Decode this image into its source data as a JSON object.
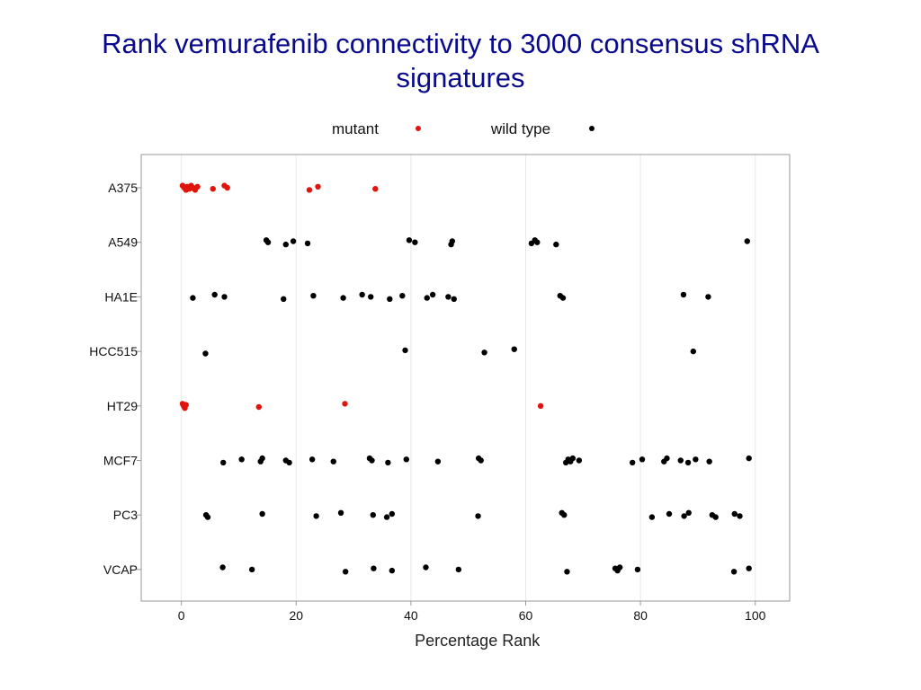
{
  "slide": {
    "title": "Rank vemurafenib connectivity to 3000 consensus shRNA signatures"
  },
  "chart_data": {
    "type": "scatter",
    "title": "",
    "xlabel": "Percentage Rank",
    "ylabel": "",
    "xlim": [
      -7,
      106
    ],
    "xticks": [
      0,
      20,
      40,
      60,
      80,
      100
    ],
    "categories": [
      "A375",
      "A549",
      "HA1E",
      "HCC515",
      "HT29",
      "MCF7",
      "PC3",
      "VCAP"
    ],
    "legend": {
      "placement": "top",
      "entries": [
        {
          "label": "mutant",
          "color": "#e0140c"
        },
        {
          "label": "wild type",
          "color": "#000000"
        }
      ]
    },
    "grid": {
      "vertical": true,
      "horizontal": false,
      "color": "#e8e8e8"
    },
    "series": [
      {
        "name": "mutant",
        "color": "#e0140c",
        "points": [
          {
            "cell_line": "A375",
            "x": 0.2
          },
          {
            "cell_line": "A375",
            "x": 0.5
          },
          {
            "cell_line": "A375",
            "x": 0.8
          },
          {
            "cell_line": "A375",
            "x": 1.0
          },
          {
            "cell_line": "A375",
            "x": 1.4
          },
          {
            "cell_line": "A375",
            "x": 1.7
          },
          {
            "cell_line": "A375",
            "x": 2.0
          },
          {
            "cell_line": "A375",
            "x": 2.4
          },
          {
            "cell_line": "A375",
            "x": 2.8
          },
          {
            "cell_line": "A375",
            "x": 5.5
          },
          {
            "cell_line": "A375",
            "x": 7.5
          },
          {
            "cell_line": "A375",
            "x": 8.0
          },
          {
            "cell_line": "A375",
            "x": 22.3
          },
          {
            "cell_line": "A375",
            "x": 23.8
          },
          {
            "cell_line": "A375",
            "x": 33.8
          },
          {
            "cell_line": "HT29",
            "x": 0.2
          },
          {
            "cell_line": "HT29",
            "x": 0.4
          },
          {
            "cell_line": "HT29",
            "x": 0.6
          },
          {
            "cell_line": "HT29",
            "x": 0.8
          },
          {
            "cell_line": "HT29",
            "x": 13.5
          },
          {
            "cell_line": "HT29",
            "x": 28.5
          },
          {
            "cell_line": "HT29",
            "x": 62.6
          }
        ]
      },
      {
        "name": "wild type",
        "color": "#000000",
        "points": [
          {
            "cell_line": "A549",
            "x": 14.8
          },
          {
            "cell_line": "A549",
            "x": 15.1
          },
          {
            "cell_line": "A549",
            "x": 18.2
          },
          {
            "cell_line": "A549",
            "x": 19.5
          },
          {
            "cell_line": "A549",
            "x": 22.0
          },
          {
            "cell_line": "A549",
            "x": 39.7
          },
          {
            "cell_line": "A549",
            "x": 40.7
          },
          {
            "cell_line": "A549",
            "x": 47.0
          },
          {
            "cell_line": "A549",
            "x": 47.2
          },
          {
            "cell_line": "A549",
            "x": 61.0
          },
          {
            "cell_line": "A549",
            "x": 61.6
          },
          {
            "cell_line": "A549",
            "x": 62.0
          },
          {
            "cell_line": "A549",
            "x": 65.3
          },
          {
            "cell_line": "A549",
            "x": 98.6
          },
          {
            "cell_line": "HA1E",
            "x": 2.0
          },
          {
            "cell_line": "HA1E",
            "x": 5.8
          },
          {
            "cell_line": "HA1E",
            "x": 7.5
          },
          {
            "cell_line": "HA1E",
            "x": 17.8
          },
          {
            "cell_line": "HA1E",
            "x": 23.0
          },
          {
            "cell_line": "HA1E",
            "x": 28.2
          },
          {
            "cell_line": "HA1E",
            "x": 31.5
          },
          {
            "cell_line": "HA1E",
            "x": 33.0
          },
          {
            "cell_line": "HA1E",
            "x": 36.3
          },
          {
            "cell_line": "HA1E",
            "x": 38.5
          },
          {
            "cell_line": "HA1E",
            "x": 42.8
          },
          {
            "cell_line": "HA1E",
            "x": 43.8
          },
          {
            "cell_line": "HA1E",
            "x": 46.5
          },
          {
            "cell_line": "HA1E",
            "x": 47.5
          },
          {
            "cell_line": "HA1E",
            "x": 66.0
          },
          {
            "cell_line": "HA1E",
            "x": 66.5
          },
          {
            "cell_line": "HA1E",
            "x": 87.5
          },
          {
            "cell_line": "HA1E",
            "x": 91.8
          },
          {
            "cell_line": "HCC515",
            "x": 4.2
          },
          {
            "cell_line": "HCC515",
            "x": 39.0
          },
          {
            "cell_line": "HCC515",
            "x": 52.8
          },
          {
            "cell_line": "HCC515",
            "x": 58.0
          },
          {
            "cell_line": "HCC515",
            "x": 89.2
          },
          {
            "cell_line": "MCF7",
            "x": 7.3
          },
          {
            "cell_line": "MCF7",
            "x": 10.5
          },
          {
            "cell_line": "MCF7",
            "x": 13.8
          },
          {
            "cell_line": "MCF7",
            "x": 14.1
          },
          {
            "cell_line": "MCF7",
            "x": 18.2
          },
          {
            "cell_line": "MCF7",
            "x": 18.8
          },
          {
            "cell_line": "MCF7",
            "x": 22.8
          },
          {
            "cell_line": "MCF7",
            "x": 26.5
          },
          {
            "cell_line": "MCF7",
            "x": 32.8
          },
          {
            "cell_line": "MCF7",
            "x": 33.2
          },
          {
            "cell_line": "MCF7",
            "x": 36.0
          },
          {
            "cell_line": "MCF7",
            "x": 39.2
          },
          {
            "cell_line": "MCF7",
            "x": 44.7
          },
          {
            "cell_line": "MCF7",
            "x": 51.8
          },
          {
            "cell_line": "MCF7",
            "x": 52.2
          },
          {
            "cell_line": "MCF7",
            "x": 67.0
          },
          {
            "cell_line": "MCF7",
            "x": 67.4
          },
          {
            "cell_line": "MCF7",
            "x": 67.8
          },
          {
            "cell_line": "MCF7",
            "x": 68.2
          },
          {
            "cell_line": "MCF7",
            "x": 69.3
          },
          {
            "cell_line": "MCF7",
            "x": 78.6
          },
          {
            "cell_line": "MCF7",
            "x": 80.3
          },
          {
            "cell_line": "MCF7",
            "x": 84.1
          },
          {
            "cell_line": "MCF7",
            "x": 84.6
          },
          {
            "cell_line": "MCF7",
            "x": 87.0
          },
          {
            "cell_line": "MCF7",
            "x": 88.3
          },
          {
            "cell_line": "MCF7",
            "x": 89.6
          },
          {
            "cell_line": "MCF7",
            "x": 92.0
          },
          {
            "cell_line": "MCF7",
            "x": 98.9
          },
          {
            "cell_line": "PC3",
            "x": 4.3
          },
          {
            "cell_line": "PC3",
            "x": 4.6
          },
          {
            "cell_line": "PC3",
            "x": 14.1
          },
          {
            "cell_line": "PC3",
            "x": 23.5
          },
          {
            "cell_line": "PC3",
            "x": 27.8
          },
          {
            "cell_line": "PC3",
            "x": 33.4
          },
          {
            "cell_line": "PC3",
            "x": 35.8
          },
          {
            "cell_line": "PC3",
            "x": 36.7
          },
          {
            "cell_line": "PC3",
            "x": 51.7
          },
          {
            "cell_line": "PC3",
            "x": 66.3
          },
          {
            "cell_line": "PC3",
            "x": 66.7
          },
          {
            "cell_line": "PC3",
            "x": 82.0
          },
          {
            "cell_line": "PC3",
            "x": 85.0
          },
          {
            "cell_line": "PC3",
            "x": 87.6
          },
          {
            "cell_line": "PC3",
            "x": 88.4
          },
          {
            "cell_line": "PC3",
            "x": 92.5
          },
          {
            "cell_line": "PC3",
            "x": 93.1
          },
          {
            "cell_line": "PC3",
            "x": 96.4
          },
          {
            "cell_line": "PC3",
            "x": 97.3
          },
          {
            "cell_line": "VCAP",
            "x": 7.2
          },
          {
            "cell_line": "VCAP",
            "x": 12.3
          },
          {
            "cell_line": "VCAP",
            "x": 28.6
          },
          {
            "cell_line": "VCAP",
            "x": 33.5
          },
          {
            "cell_line": "VCAP",
            "x": 36.7
          },
          {
            "cell_line": "VCAP",
            "x": 42.6
          },
          {
            "cell_line": "VCAP",
            "x": 48.3
          },
          {
            "cell_line": "VCAP",
            "x": 67.2
          },
          {
            "cell_line": "VCAP",
            "x": 75.6
          },
          {
            "cell_line": "VCAP",
            "x": 76.0
          },
          {
            "cell_line": "VCAP",
            "x": 76.4
          },
          {
            "cell_line": "VCAP",
            "x": 79.5
          },
          {
            "cell_line": "VCAP",
            "x": 96.3
          },
          {
            "cell_line": "VCAP",
            "x": 98.9
          }
        ]
      }
    ]
  }
}
